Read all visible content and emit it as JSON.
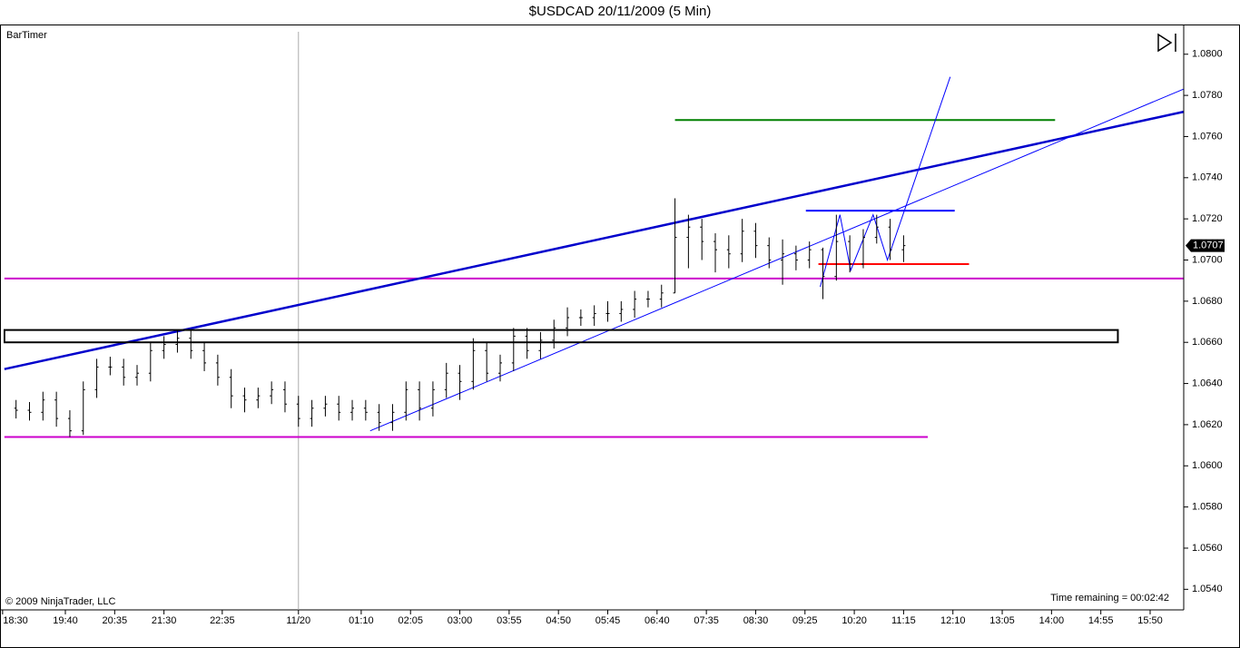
{
  "chart_data": {
    "type": "ohlc",
    "title": "$USDCAD  20/11/2009 (5 Min)",
    "indicator": "BarTimer",
    "copyright": "© 2009 NinjaTrader, LLC",
    "timer": "Time remaining = 00:02:42",
    "last_price": 1.0707,
    "color": "#000000",
    "x": [
      "18:45",
      "19:00",
      "19:15",
      "19:30",
      "19:45",
      "20:00",
      "20:15",
      "20:30",
      "20:45",
      "21:00",
      "21:15",
      "21:30",
      "21:45",
      "22:00",
      "22:15",
      "22:30",
      "22:45",
      "23:00",
      "23:15",
      "23:30",
      "23:45",
      "00:00",
      "00:15",
      "00:30",
      "00:45",
      "01:00",
      "01:15",
      "01:30",
      "01:45",
      "02:00",
      "02:15",
      "02:30",
      "02:45",
      "03:00",
      "03:15",
      "03:30",
      "03:45",
      "04:00",
      "04:15",
      "04:30",
      "04:45",
      "05:00",
      "05:15",
      "05:30",
      "05:45",
      "06:00",
      "06:15",
      "06:30",
      "06:45",
      "07:00",
      "07:15",
      "07:30",
      "07:45",
      "08:00",
      "08:15",
      "08:30",
      "08:45",
      "09:00",
      "09:15",
      "09:30",
      "09:45",
      "10:00",
      "10:15",
      "10:30",
      "10:45",
      "11:00",
      "11:15"
    ],
    "open": [
      1.0628,
      1.0627,
      1.0626,
      1.0632,
      1.0623,
      1.0617,
      1.0637,
      1.0648,
      1.0648,
      1.0643,
      1.0645,
      1.0656,
      1.0659,
      1.0662,
      1.0656,
      1.065,
      1.0643,
      1.0634,
      1.0632,
      1.0634,
      1.0637,
      1.063,
      1.0623,
      1.0628,
      1.063,
      1.0626,
      1.0628,
      1.0626,
      1.0621,
      1.0626,
      1.0637,
      1.0628,
      1.0637,
      1.0645,
      1.0641,
      1.0656,
      1.0645,
      1.065,
      1.0663,
      1.0656,
      1.0661,
      1.0667,
      1.0672,
      1.0672,
      1.0674,
      1.0674,
      1.0676,
      1.0681,
      1.0681,
      1.0684,
      1.0711,
      1.0716,
      1.0709,
      1.0705,
      1.0703,
      1.0714,
      1.0707,
      1.07,
      1.0703,
      1.07,
      1.0705,
      1.0692,
      1.0709,
      1.0698,
      1.0711,
      1.0716,
      1.0705
    ],
    "high": [
      1.0632,
      1.0631,
      1.0636,
      1.0636,
      1.0627,
      1.0641,
      1.0652,
      1.0653,
      1.0652,
      1.0649,
      1.066,
      1.0663,
      1.0666,
      1.0666,
      1.066,
      1.0654,
      1.0647,
      1.0638,
      1.0638,
      1.0641,
      1.0641,
      1.0634,
      1.0632,
      1.0634,
      1.0634,
      1.0632,
      1.0632,
      1.063,
      1.063,
      1.0641,
      1.0641,
      1.0641,
      1.065,
      1.0649,
      1.0662,
      1.066,
      1.0654,
      1.0667,
      1.0667,
      1.0665,
      1.0671,
      1.0677,
      1.0676,
      1.0678,
      1.068,
      1.068,
      1.0685,
      1.0685,
      1.0688,
      1.073,
      1.0722,
      1.072,
      1.0713,
      1.0712,
      1.072,
      1.0718,
      1.0711,
      1.071,
      1.0707,
      1.0709,
      1.0706,
      1.0722,
      1.0712,
      1.0715,
      1.0722,
      1.072,
      1.0712
    ],
    "low": [
      1.0623,
      1.0622,
      1.0622,
      1.0619,
      1.0614,
      1.0615,
      1.0633,
      1.0644,
      1.0639,
      1.0639,
      1.0641,
      1.0652,
      1.0655,
      1.0652,
      1.0646,
      1.0639,
      1.0628,
      1.0626,
      1.0628,
      1.063,
      1.0626,
      1.0619,
      1.0619,
      1.0624,
      1.0622,
      1.0622,
      1.0622,
      1.0617,
      1.0617,
      1.0622,
      1.0622,
      1.0624,
      1.0633,
      1.0632,
      1.0637,
      1.0641,
      1.0641,
      1.0646,
      1.0652,
      1.0652,
      1.0657,
      1.0663,
      1.0668,
      1.0668,
      1.067,
      1.067,
      1.0672,
      1.0677,
      1.0677,
      1.0684,
      1.0696,
      1.07,
      1.0694,
      1.0696,
      1.0699,
      1.0701,
      1.0696,
      1.0688,
      1.0695,
      1.0696,
      1.0681,
      1.069,
      1.0694,
      1.0696,
      1.0708,
      1.07,
      1.0699
    ],
    "close": [
      1.0627,
      1.0626,
      1.0632,
      1.0623,
      1.0617,
      1.0637,
      1.0648,
      1.0648,
      1.0643,
      1.0645,
      1.0656,
      1.0659,
      1.0662,
      1.0656,
      1.065,
      1.0643,
      1.0634,
      1.0632,
      1.0634,
      1.0637,
      1.063,
      1.0623,
      1.0628,
      1.063,
      1.0626,
      1.0628,
      1.0626,
      1.0621,
      1.0626,
      1.0637,
      1.0628,
      1.0637,
      1.0645,
      1.0641,
      1.0656,
      1.0645,
      1.065,
      1.0663,
      1.0656,
      1.0661,
      1.0667,
      1.0672,
      1.0672,
      1.0674,
      1.0674,
      1.0676,
      1.0681,
      1.0681,
      1.0684,
      1.0711,
      1.0716,
      1.0709,
      1.0705,
      1.0703,
      1.0714,
      1.0707,
      1.07,
      1.0703,
      1.07,
      1.0705,
      1.0692,
      1.0709,
      1.0698,
      1.0711,
      1.0716,
      1.0705,
      1.0707
    ],
    "ylim": [
      1.053,
      1.0814
    ],
    "yticks": [
      {
        "value": 1.054,
        "label": "1.0540"
      },
      {
        "value": 1.056,
        "label": "1.0560"
      },
      {
        "value": 1.058,
        "label": "1.0580"
      },
      {
        "value": 1.06,
        "label": "1.0600"
      },
      {
        "value": 1.062,
        "label": "1.0620"
      },
      {
        "value": 1.064,
        "label": "1.0640"
      },
      {
        "value": 1.066,
        "label": "1.0660"
      },
      {
        "value": 1.068,
        "label": "1.0680"
      },
      {
        "value": 1.07,
        "label": "1.0700"
      },
      {
        "value": 1.072,
        "label": "1.0720"
      },
      {
        "value": 1.074,
        "label": "1.0740"
      },
      {
        "value": 1.076,
        "label": "1.0760"
      },
      {
        "value": 1.078,
        "label": "1.0780"
      },
      {
        "value": 1.08,
        "label": "1.0800"
      }
    ],
    "xticks": [
      "18:30",
      "19:40",
      "20:35",
      "21:30",
      "22:35",
      {
        "value": "00:00",
        "label": "11/20"
      },
      "01:10",
      "02:05",
      "03:00",
      "03:55",
      "04:50",
      "05:45",
      "06:40",
      "07:35",
      "08:30",
      "09:25",
      "10:20",
      "11:15",
      "12:10",
      "13:05",
      "14:00",
      "14:55",
      "15:50"
    ],
    "lines": [
      {
        "color": "#cc00cc",
        "x": [
          "18:32",
          "16:27"
        ],
        "values": [
          1.0691,
          1.0691
        ]
      },
      {
        "color": "#cc00cc",
        "x": [
          "18:32",
          "11:42"
        ],
        "values": [
          1.0614,
          1.0614
        ]
      },
      {
        "color": "#008000",
        "x": [
          "07:00",
          "14:04"
        ],
        "values": [
          1.0768,
          1.0768
        ]
      },
      {
        "color": "#0000ff",
        "x": [
          "09:26",
          "12:12"
        ],
        "values": [
          1.0724,
          1.0724
        ]
      },
      {
        "color": "#ff0000",
        "x": [
          "09:40",
          "12:28"
        ],
        "values": [
          1.0698,
          1.0698
        ]
      },
      {
        "color": "#0000cc",
        "x": [
          "18:32",
          "16:27"
        ],
        "values": [
          1.0647,
          1.0772
        ]
      },
      {
        "color": "#0000ff",
        "x": [
          "01:20",
          "16:27"
        ],
        "values": [
          1.0617,
          1.0783
        ]
      },
      {
        "color": "#0000ff",
        "x": [
          "09:42",
          "10:04",
          "10:16",
          "10:41",
          "10:57",
          "12:07"
        ],
        "values": [
          1.0687,
          1.0722,
          1.0695,
          1.0722,
          1.07,
          1.0789
        ]
      }
    ],
    "rectangle": {
      "color": "#000000",
      "x": [
        "18:32",
        "15:14"
      ],
      "values": [
        1.0666,
        1.066
      ]
    }
  }
}
